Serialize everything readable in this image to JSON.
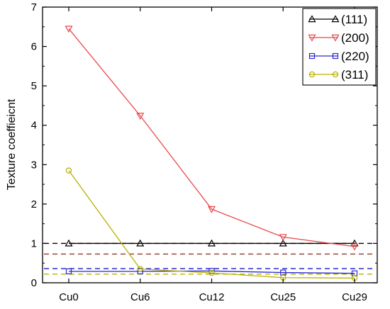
{
  "chart_data": {
    "type": "line",
    "ylabel": "Texture coeffieicnt",
    "xlabel": "",
    "categories": [
      "Cu0",
      "Cu6",
      "Cu12",
      "Cu25",
      "Cu29"
    ],
    "ylim": [
      0,
      7
    ],
    "yticks": [
      0,
      1,
      2,
      3,
      4,
      5,
      6,
      7
    ],
    "series": [
      {
        "name": "(111)",
        "color": "#000000",
        "marker": "triangle-up",
        "values": [
          1.0,
          1.0,
          1.0,
          1.0,
          1.0
        ]
      },
      {
        "name": "(200)",
        "color": "#e8474a",
        "marker": "triangle-down",
        "values": [
          6.45,
          4.24,
          1.87,
          1.16,
          0.92
        ]
      },
      {
        "name": "(220)",
        "color": "#2a2ad0",
        "marker": "square",
        "values": [
          0.29,
          0.29,
          0.3,
          0.26,
          0.24
        ]
      },
      {
        "name": "(311)",
        "color": "#b8b000",
        "marker": "circle",
        "values": [
          2.85,
          0.35,
          0.25,
          0.13,
          0.12
        ]
      }
    ],
    "reference_lines": [
      {
        "value": 1.0,
        "color": "#000000"
      },
      {
        "value": 0.73,
        "color": "#8b3a2a"
      },
      {
        "value": 0.36,
        "color": "#2a2ad0"
      },
      {
        "value": 0.22,
        "color": "#b8b000"
      }
    ],
    "legend_position": "top-right",
    "grid": false
  }
}
